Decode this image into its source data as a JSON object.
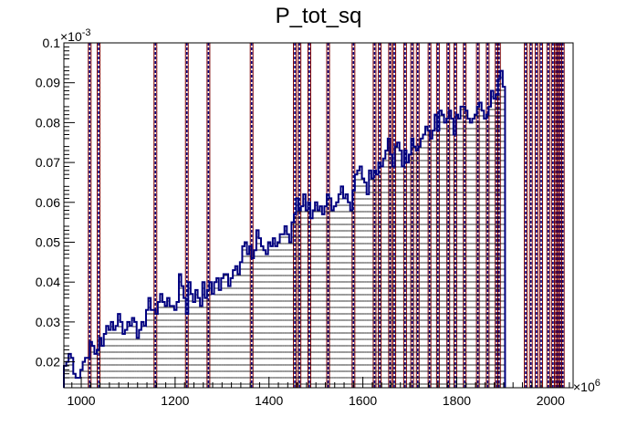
{
  "chart_data": {
    "type": "histogram",
    "title": "P_tot_sq",
    "xlabel": "",
    "ylabel": "",
    "x_exponent_label": "×10",
    "x_exponent_power": "6",
    "y_exponent_label": "×10",
    "y_exponent_power": "-3",
    "xlim": [
      963,
      2048
    ],
    "ylim": [
      0.0135,
      0.1
    ],
    "x_ticks": [
      1000,
      1200,
      1400,
      1600,
      1800,
      2000
    ],
    "x_tick_labels": [
      "1000",
      "1200",
      "1400",
      "1600",
      "1800",
      "2000"
    ],
    "y_ticks": [
      0.02,
      0.03,
      0.04,
      0.05,
      0.06,
      0.07,
      0.08,
      0.09,
      0.1
    ],
    "y_tick_labels": [
      "0.02",
      "0.03",
      "0.04",
      "0.05",
      "0.06",
      "0.07",
      "0.08",
      "0.09",
      "0.1"
    ],
    "grid": false,
    "legend": "none",
    "line_color": "#000080",
    "spike_color": "#800000",
    "bin_width": 5,
    "bin_start": 963,
    "values": [
      0.019,
      0.02,
      0.022,
      0.021,
      0.017,
      0.016,
      0.016,
      0.018,
      0.02,
      0.021,
      0.021,
      0.025,
      0.024,
      0.022,
      0.023,
      0.026,
      0.024,
      0.027,
      0.029,
      0.028,
      0.03,
      0.028,
      0.029,
      0.032,
      0.03,
      0.027,
      0.028,
      0.03,
      0.029,
      0.031,
      0.03,
      0.026,
      0.028,
      0.03,
      0.029,
      0.033,
      0.036,
      0.033,
      0.033,
      0.032,
      0.035,
      0.037,
      0.035,
      0.034,
      0.036,
      0.034,
      0.034,
      0.033,
      0.035,
      0.042,
      0.039,
      0.036,
      0.032,
      0.04,
      0.037,
      0.035,
      0.038,
      0.036,
      0.034,
      0.04,
      0.036,
      0.038,
      0.04,
      0.037,
      0.04,
      0.041,
      0.038,
      0.041,
      0.042,
      0.042,
      0.039,
      0.041,
      0.043,
      0.044,
      0.042,
      0.045,
      0.049,
      0.05,
      0.047,
      0.049,
      0.046,
      0.048,
      0.053,
      0.051,
      0.049,
      0.048,
      0.047,
      0.05,
      0.049,
      0.051,
      0.049,
      0.05,
      0.052,
      0.052,
      0.054,
      0.052,
      0.05,
      0.055,
      0.057,
      0.061,
      0.058,
      0.059,
      0.062,
      0.058,
      0.06,
      0.056,
      0.058,
      0.06,
      0.058,
      0.059,
      0.057,
      0.059,
      0.062,
      0.061,
      0.058,
      0.059,
      0.06,
      0.062,
      0.064,
      0.061,
      0.062,
      0.06,
      0.058,
      0.063,
      0.067,
      0.068,
      0.069,
      0.066,
      0.065,
      0.062,
      0.068,
      0.066,
      0.068,
      0.067,
      0.07,
      0.069,
      0.071,
      0.073,
      0.076,
      0.072,
      0.069,
      0.074,
      0.075,
      0.073,
      0.069,
      0.073,
      0.07,
      0.072,
      0.076,
      0.074,
      0.073,
      0.074,
      0.076,
      0.077,
      0.079,
      0.078,
      0.076,
      0.078,
      0.082,
      0.078,
      0.083,
      0.082,
      0.08,
      0.081,
      0.083,
      0.081,
      0.077,
      0.082,
      0.081,
      0.084,
      0.084,
      0.083,
      0.081,
      0.08,
      0.081,
      0.082,
      0.084,
      0.085,
      0.083,
      0.081,
      0.082,
      0.084,
      0.088,
      0.086,
      0.087,
      0.091,
      0.093,
      0.089
    ],
    "spikes_x": [
      1018,
      1037,
      1158,
      1225,
      1271,
      1363,
      1455,
      1465,
      1486,
      1526,
      1580,
      1625,
      1636,
      1658,
      1667,
      1690,
      1705,
      1717,
      1742,
      1760,
      1782,
      1797,
      1817,
      1845,
      1866,
      1885,
      1890,
      1947,
      1958,
      1970,
      1980,
      1995,
      2005,
      2012,
      2016,
      2021,
      2026
    ]
  }
}
